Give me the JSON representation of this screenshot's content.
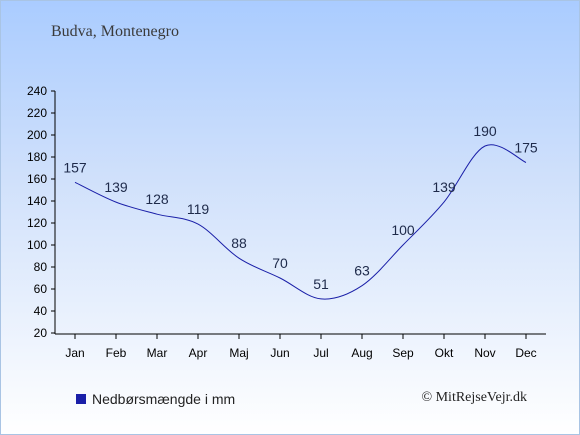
{
  "chart_data": {
    "type": "line",
    "title": "",
    "subtitle": "Budva, Montenegro",
    "categories": [
      "Jan",
      "Feb",
      "Mar",
      "Apr",
      "Maj",
      "Jun",
      "Jul",
      "Aug",
      "Sep",
      "Okt",
      "Nov",
      "Dec"
    ],
    "series": [
      {
        "name": "Nedbørsmængde i mm",
        "values": [
          157,
          139,
          128,
          119,
          88,
          70,
          51,
          63,
          100,
          139,
          190,
          175
        ]
      }
    ],
    "ylim": [
      20,
      240
    ],
    "yticks": [
      20,
      40,
      60,
      80,
      100,
      120,
      140,
      160,
      180,
      200,
      220,
      240
    ],
    "grid": false,
    "legend": "bottom-left",
    "line_color": "#1a1fa8",
    "label_color": "#1e2a4a"
  },
  "credit": "© MitRejseVejr.dk"
}
